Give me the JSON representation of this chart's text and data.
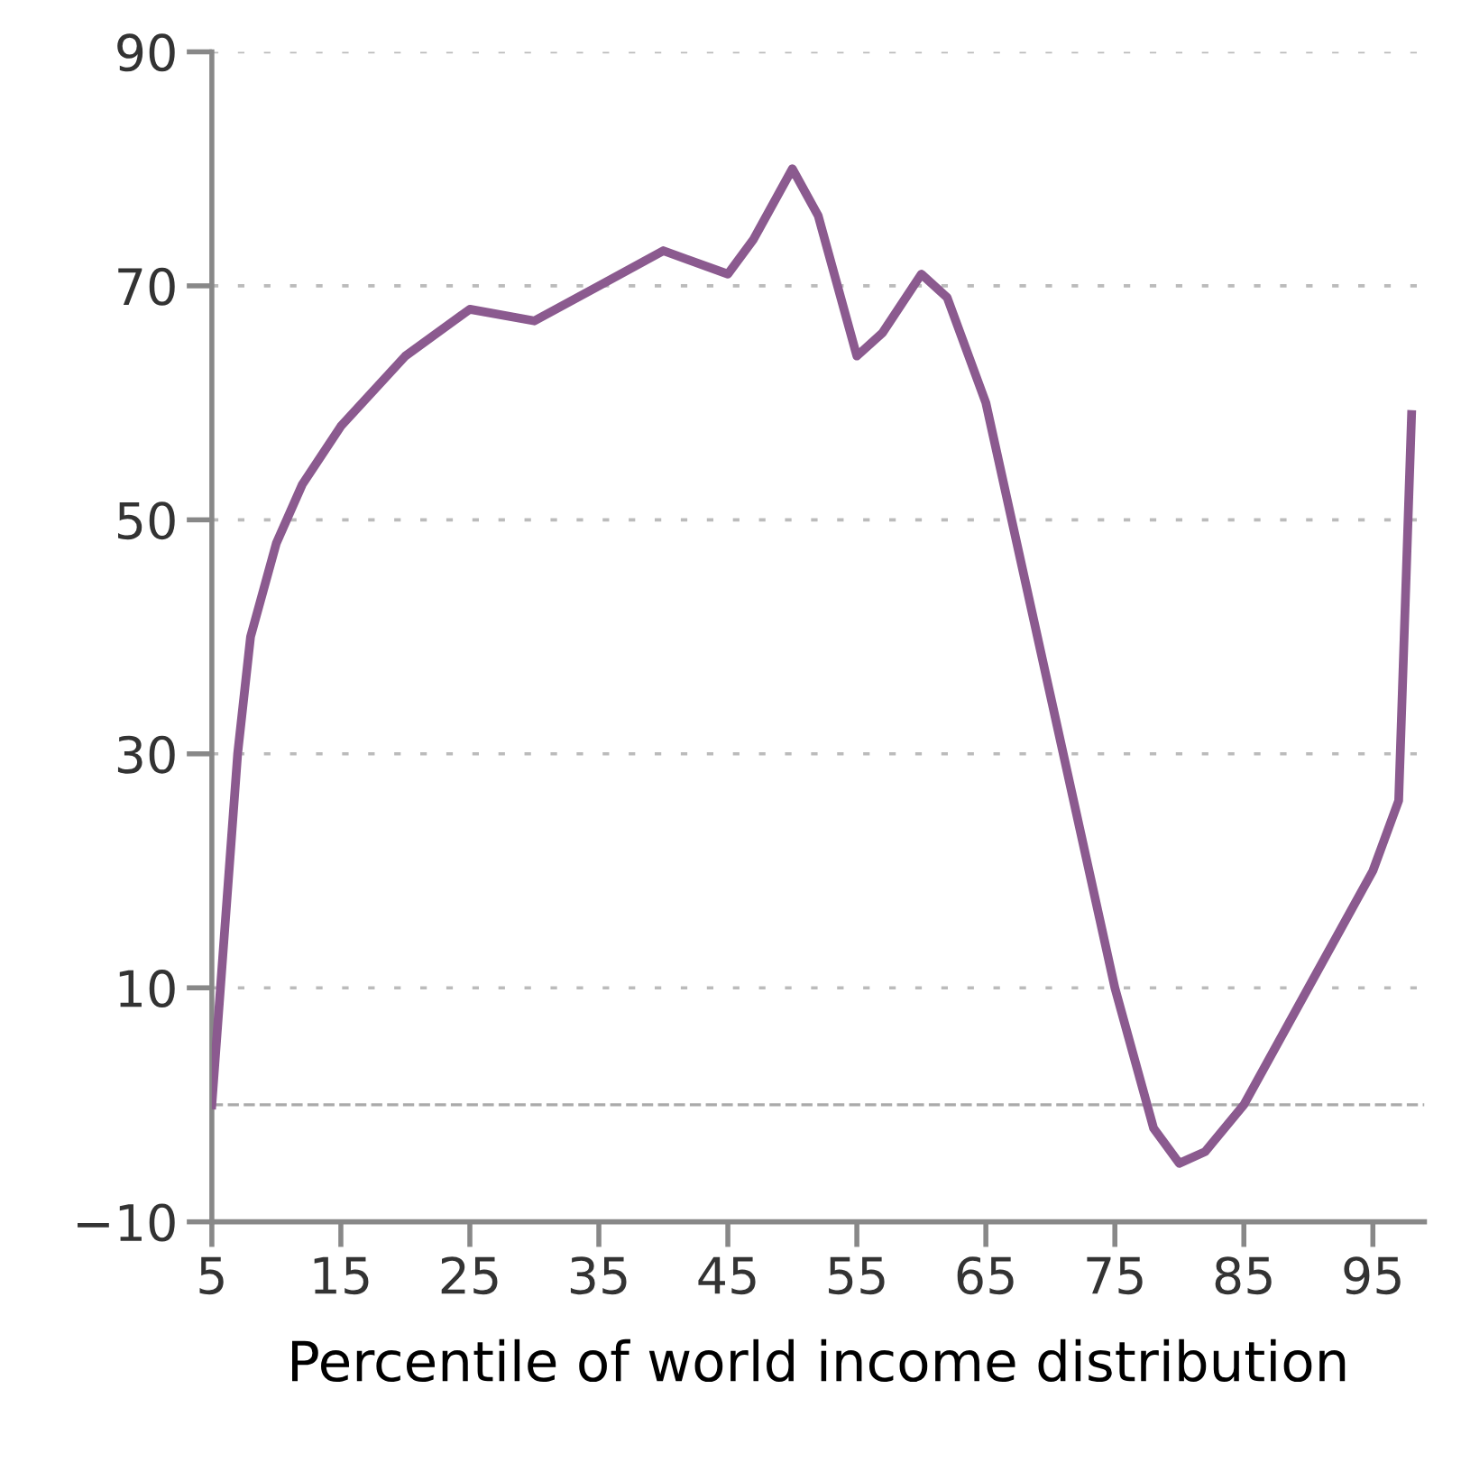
{
  "chart_data": {
    "type": "line",
    "xlabel": "Percentile of world income distribution",
    "x": [
      5,
      6,
      7,
      8,
      10,
      12,
      15,
      20,
      25,
      30,
      35,
      40,
      45,
      47,
      50,
      52,
      55,
      57,
      60,
      62,
      65,
      70,
      75,
      78,
      80,
      82,
      85,
      90,
      95,
      97,
      98
    ],
    "series": [
      {
        "color": "#8b5a8f",
        "values": [
          0,
          15,
          30,
          40,
          48,
          53,
          58,
          64,
          68,
          67,
          70,
          73,
          71,
          74,
          80,
          76,
          64,
          66,
          71,
          69,
          60,
          35,
          10,
          -2,
          -5,
          -4,
          0,
          10,
          20,
          26,
          59
        ]
      }
    ],
    "xlim": [
      5,
      99
    ],
    "xticks": [
      5,
      15,
      25,
      35,
      45,
      55,
      65,
      75,
      85,
      95
    ],
    "ylim": [
      -10,
      90
    ],
    "yticks": [
      -10,
      10,
      30,
      50,
      70,
      90
    ],
    "grid": "y",
    "legend": false,
    "marker": "none",
    "line_style": "solid",
    "ref_lines": [
      {
        "axis": "y",
        "value": 0,
        "label": null,
        "color": "#aaaaaa",
        "line_style": "dashed"
      }
    ]
  }
}
